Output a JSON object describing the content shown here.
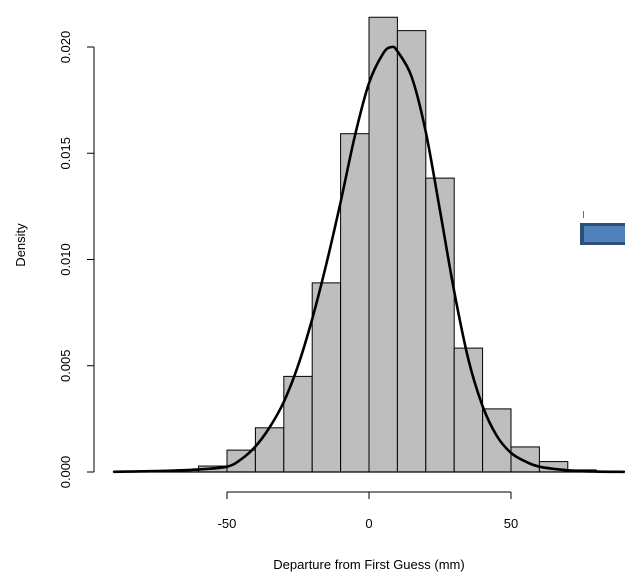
{
  "chart_data": {
    "type": "bar",
    "subtype": "histogram-with-density-curve",
    "title": "",
    "xlabel": "Departure from First Guess (mm)",
    "ylabel": "Density",
    "xlim": [
      -90,
      90
    ],
    "ylim": [
      0,
      0.0215
    ],
    "x_ticks": [
      -50,
      0,
      50
    ],
    "x_tick_labels": [
      "-50",
      "0",
      "50"
    ],
    "y_ticks": [
      0,
      0.005,
      0.01,
      0.015,
      0.02
    ],
    "y_tick_labels": [
      "0.000",
      "0.005",
      "0.010",
      "0.015",
      "0.020"
    ],
    "grid": false,
    "legend": "none",
    "bin_width": 10,
    "bins": [
      {
        "start": -90,
        "end": -80,
        "density": 2e-05
      },
      {
        "start": -80,
        "end": -70,
        "density": 3e-05
      },
      {
        "start": -70,
        "end": -60,
        "density": 7e-05
      },
      {
        "start": -60,
        "end": -50,
        "density": 0.00028
      },
      {
        "start": -50,
        "end": -40,
        "density": 0.00103
      },
      {
        "start": -40,
        "end": -30,
        "density": 0.00208
      },
      {
        "start": -30,
        "end": -20,
        "density": 0.0045
      },
      {
        "start": -20,
        "end": -10,
        "density": 0.0089
      },
      {
        "start": -10,
        "end": 0,
        "density": 0.01592
      },
      {
        "start": 0,
        "end": 10,
        "density": 0.0214
      },
      {
        "start": 10,
        "end": 20,
        "density": 0.02077
      },
      {
        "start": 20,
        "end": 30,
        "density": 0.01383
      },
      {
        "start": 30,
        "end": 40,
        "density": 0.00583
      },
      {
        "start": 40,
        "end": 50,
        "density": 0.00297
      },
      {
        "start": 50,
        "end": 60,
        "density": 0.00118
      },
      {
        "start": 60,
        "end": 70,
        "density": 0.00049
      },
      {
        "start": 70,
        "end": 80,
        "density": 0.0001
      },
      {
        "start": 80,
        "end": 90,
        "density": 3e-05
      }
    ],
    "density_curve": {
      "x": [
        -90,
        -80,
        -70,
        -60,
        -50,
        -45,
        -40,
        -35,
        -30,
        -25,
        -20,
        -15,
        -10,
        -5,
        0,
        5,
        8,
        10,
        15,
        20,
        25,
        30,
        35,
        40,
        45,
        50,
        55,
        60,
        70,
        80,
        90
      ],
      "y": [
        1e-05,
        3e-05,
        6e-05,
        0.00012,
        0.00025,
        0.0006,
        0.0012,
        0.0021,
        0.0033,
        0.005,
        0.0072,
        0.0098,
        0.0127,
        0.0158,
        0.0183,
        0.0197,
        0.02,
        0.0198,
        0.0186,
        0.016,
        0.0123,
        0.0085,
        0.0053,
        0.0031,
        0.0017,
        0.0009,
        0.0005,
        0.00025,
        8e-05,
        2e-05,
        5e-06
      ]
    },
    "colors": {
      "bar_fill": "#bebebe",
      "bar_stroke": "#000000",
      "curve": "#000000",
      "artifact": "#4a7ab4"
    }
  }
}
